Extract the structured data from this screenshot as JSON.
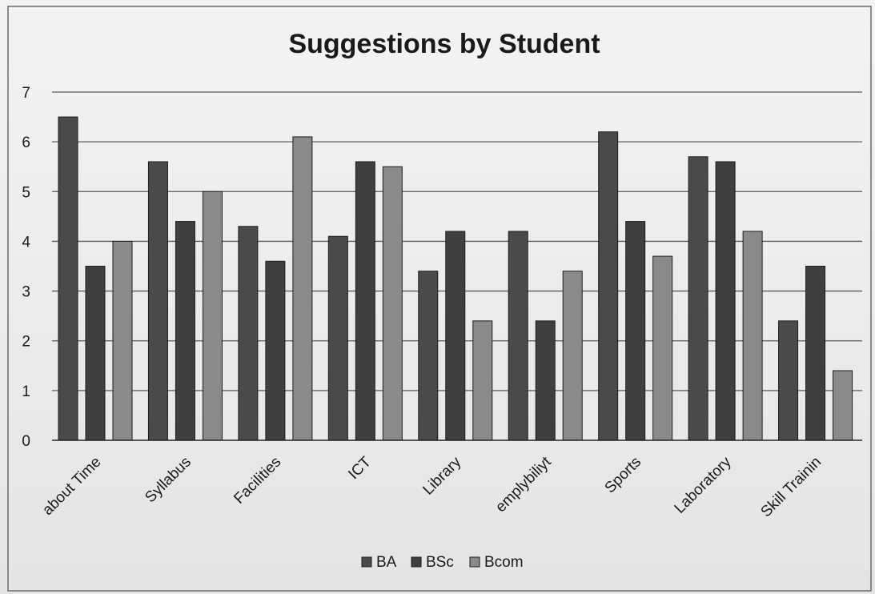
{
  "chart_data": {
    "type": "bar",
    "title": "Suggestions by Student",
    "xlabel": "",
    "ylabel": "",
    "ylim": [
      0,
      7
    ],
    "yticks": [
      0,
      1,
      2,
      3,
      4,
      5,
      6,
      7
    ],
    "grid": true,
    "legend_position": "bottom",
    "categories": [
      "about Time",
      "Syllabus",
      "Facilities",
      "ICT",
      "Library",
      "emplybiliyt",
      "Sports",
      "Laboratory",
      "Skill Trainin"
    ],
    "series": [
      {
        "name": "BA",
        "color": "#4a4a4a",
        "values": [
          6.5,
          5.6,
          4.3,
          4.1,
          3.4,
          4.2,
          6.2,
          5.7,
          2.4
        ]
      },
      {
        "name": "BSc",
        "color": "#3f3f3f",
        "values": [
          3.5,
          4.4,
          3.6,
          5.6,
          4.2,
          2.4,
          4.4,
          5.6,
          3.5
        ]
      },
      {
        "name": "Bcom",
        "color": "#8a8a8a",
        "values": [
          4.0,
          5.0,
          6.1,
          5.5,
          2.4,
          3.4,
          3.7,
          4.2,
          1.4
        ]
      }
    ]
  }
}
